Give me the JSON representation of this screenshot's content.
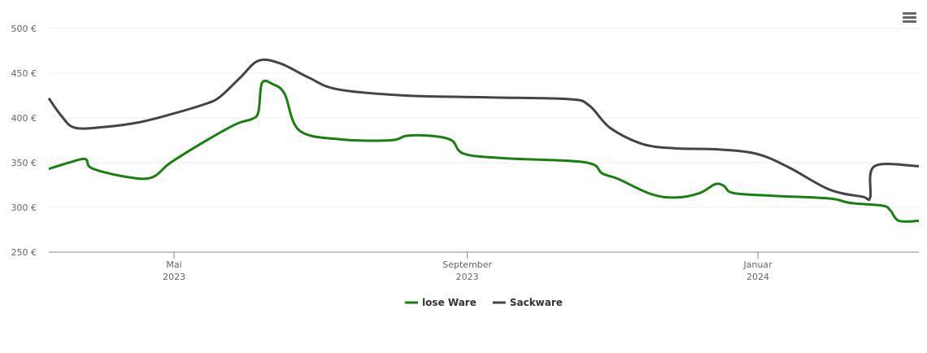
{
  "chart_data": {
    "type": "line",
    "xlim": [
      2023.185,
      2024.185
    ],
    "xticks": [
      {
        "value": 2023.329,
        "label": "Mai\n2023"
      },
      {
        "value": 2023.666,
        "label": "September\n2023"
      },
      {
        "value": 2024.0,
        "label": "Januar\n2024"
      }
    ],
    "ylim": [
      250,
      500
    ],
    "yticks": [
      {
        "value": 250,
        "label": "250 €"
      },
      {
        "value": 300,
        "label": "300 €"
      },
      {
        "value": 350,
        "label": "350 €"
      },
      {
        "value": 400,
        "label": "400 €"
      },
      {
        "value": 450,
        "label": "450 €"
      },
      {
        "value": 500,
        "label": "500 €"
      }
    ],
    "grid": true,
    "legend": "bottom",
    "series": [
      {
        "name": "lose Ware",
        "color": "#17800f",
        "x": [
          2023.185,
          2023.208,
          2023.227,
          2023.234,
          2023.269,
          2023.302,
          2023.325,
          2023.363,
          2023.4,
          2023.419,
          2023.426,
          2023.43,
          2023.442,
          2023.456,
          2023.473,
          2023.521,
          2023.578,
          2023.596,
          2023.624,
          2023.648,
          2023.662,
          2023.708,
          2023.783,
          2023.811,
          2023.821,
          2023.839,
          2023.877,
          2023.905,
          2023.933,
          2023.951,
          2023.961,
          2023.972,
          2024.017,
          2024.082,
          2024.106,
          2024.143,
          2024.152,
          2024.162,
          2024.185
        ],
        "values": [
          343,
          350,
          354,
          344,
          335,
          333,
          350,
          373,
          393,
          399,
          407,
          439,
          438,
          427,
          386,
          376,
          375,
          380,
          380,
          375,
          360,
          355,
          352,
          348,
          338,
          332,
          315,
          311,
          316,
          326,
          324,
          316,
          313,
          310,
          305,
          302,
          297,
          285,
          285
        ]
      },
      {
        "name": "Sackware",
        "color": "#434348",
        "x": [
          2023.185,
          2023.199,
          2023.215,
          2023.25,
          2023.288,
          2023.325,
          2023.363,
          2023.381,
          2023.405,
          2023.426,
          2023.451,
          2023.484,
          2023.517,
          2023.596,
          2023.69,
          2023.783,
          2023.806,
          2023.83,
          2023.867,
          2023.905,
          2023.951,
          2023.998,
          2024.035,
          2024.082,
          2024.12,
          2024.129,
          2024.134,
          2024.185
        ],
        "values": [
          422,
          403,
          389,
          390,
          395,
          404,
          415,
          423,
          445,
          464,
          461,
          445,
          432,
          425,
          423,
          421,
          414,
          389,
          371,
          366,
          365,
          360,
          345,
          320,
          312,
          311,
          346,
          346
        ]
      }
    ]
  }
}
